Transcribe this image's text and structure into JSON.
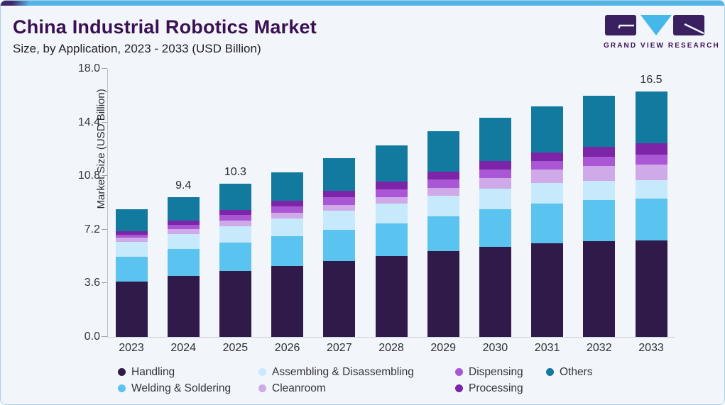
{
  "header": {
    "title": "China Industrial Robotics Market",
    "subtitle": "Size, by Application, 2023 - 2033 (USD Billion)"
  },
  "logo": {
    "text": "GRAND VIEW RESEARCH"
  },
  "y_axis": {
    "label": "Market Size (USD Billion)",
    "ticks": [
      {
        "label": "0.0",
        "value": 0
      },
      {
        "label": "3.6",
        "value": 3.6
      },
      {
        "label": "7.2",
        "value": 7.2
      },
      {
        "label": "10.8",
        "value": 10.8
      },
      {
        "label": "14.4",
        "value": 14.4
      },
      {
        "label": "18.0",
        "value": 18
      }
    ]
  },
  "chart_data": {
    "type": "bar",
    "stacked": true,
    "title": "China Industrial Robotics Market Size, by Application, 2023 - 2033 (USD Billion)",
    "xlabel": "",
    "ylabel": "Market Size (USD Billion)",
    "ylim": [
      0,
      18
    ],
    "grid": false,
    "legend_position": "bottom",
    "categories": [
      "2023",
      "2024",
      "2025",
      "2026",
      "2027",
      "2028",
      "2029",
      "2030",
      "2031",
      "2032",
      "2033"
    ],
    "series": [
      {
        "name": "Handling",
        "color": "#301a4a",
        "values": [
          3.7,
          4.09,
          4.45,
          4.75,
          5.1,
          5.42,
          5.75,
          6.05,
          6.28,
          6.42,
          6.48
        ]
      },
      {
        "name": "Welding & Soldering",
        "color": "#5ac3ef",
        "values": [
          1.7,
          1.8,
          1.9,
          2.0,
          2.1,
          2.19,
          2.35,
          2.52,
          2.68,
          2.75,
          2.8
        ]
      },
      {
        "name": "Assembling & Disassembling",
        "color": "#c6e9fb",
        "values": [
          1.0,
          1.01,
          1.1,
          1.18,
          1.26,
          1.33,
          1.36,
          1.37,
          1.38,
          1.32,
          1.25
        ]
      },
      {
        "name": "Cleanroom",
        "color": "#d0a9e9",
        "values": [
          0.28,
          0.35,
          0.38,
          0.4,
          0.41,
          0.42,
          0.55,
          0.72,
          0.89,
          0.98,
          1.06
        ]
      },
      {
        "name": "Dispensing",
        "color": "#aa57d5",
        "values": [
          0.2,
          0.28,
          0.35,
          0.42,
          0.49,
          0.56,
          0.56,
          0.56,
          0.56,
          0.62,
          0.67
        ]
      },
      {
        "name": "Processing",
        "color": "#7d25a8",
        "values": [
          0.22,
          0.28,
          0.35,
          0.4,
          0.47,
          0.53,
          0.55,
          0.57,
          0.58,
          0.66,
          0.73
        ]
      },
      {
        "name": "Others",
        "color": "#127a9f",
        "values": [
          1.48,
          1.59,
          1.77,
          1.9,
          2.17,
          2.39,
          2.68,
          2.91,
          3.12,
          3.45,
          3.51
        ]
      }
    ],
    "totals": [
      8.58,
      9.4,
      10.3,
      11.05,
      12.0,
      12.85,
      13.8,
      14.7,
      15.5,
      16.2,
      16.5
    ],
    "bar_labels": {
      "2024": "9.4",
      "2025": "10.3",
      "2033": "16.5"
    }
  },
  "legend_order": [
    0,
    2,
    4,
    6,
    1,
    3,
    5
  ],
  "style": {
    "accent_blue": "#52b5e6",
    "accent_purple": "#3e2767",
    "title_color": "#3a1053",
    "card_background": "#f2f6fa",
    "card_border": "#abcfe7"
  }
}
